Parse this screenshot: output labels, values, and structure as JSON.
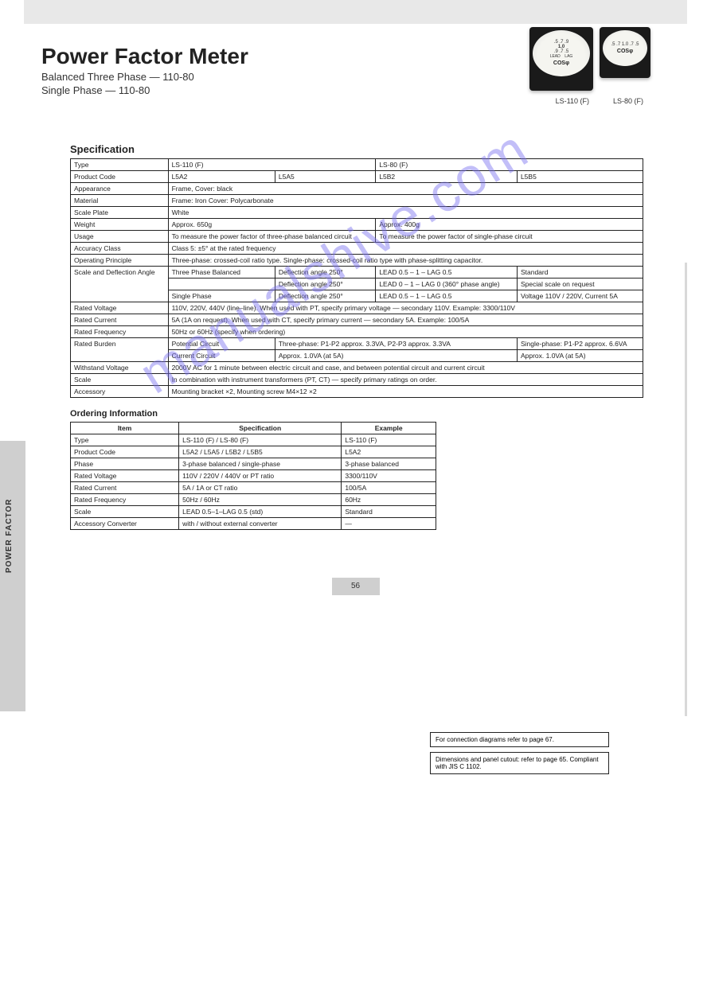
{
  "watermark_text": "manualshive.com",
  "header": {
    "title": "Power Factor Meter",
    "subtitle1": "Balanced Three Phase — 110-80",
    "subtitle2": "Single Phase — 110-80",
    "meter_label_big": "LS-110 (F)",
    "meter_label_small": "LS-80 (F)"
  },
  "spec_title": "Specification",
  "spec": {
    "rows": [
      {
        "k": "Type",
        "a": "LS-110 (F)",
        "b": "",
        "c": "LS-80 (F)",
        "d": ""
      },
      {
        "k": "Product Code",
        "a": "L5A2",
        "b": "L5A5",
        "c": "L5B2",
        "d": "L5B5"
      },
      {
        "k": "Appearance",
        "a": "Frame, Cover: black",
        "b": "",
        "c": "",
        "d": ""
      },
      {
        "k": "Material",
        "a": "Frame: Iron    Cover: Polycarbonate",
        "b": "",
        "c": "",
        "d": ""
      },
      {
        "k": "Scale Plate",
        "a": "White",
        "b": "",
        "c": "",
        "d": ""
      },
      {
        "k": "Weight",
        "a": "Approx. 650g",
        "b": "",
        "c": "Approx. 400g",
        "d": ""
      },
      {
        "k": "Usage",
        "a": "To measure the power factor of three-phase balanced circuit",
        "b": "",
        "c": "To measure the power factor of single-phase circuit",
        "d": ""
      },
      {
        "k": "Accuracy Class",
        "a": "Class 5: ±5° at the rated frequency",
        "b": "",
        "c": "",
        "d": ""
      },
      {
        "k": "Operating Principle",
        "a": "Three-phase: crossed-coil ratio type.    Single-phase: crossed-coil ratio type with phase-splitting capacitor.",
        "b": "",
        "c": "",
        "d": ""
      }
    ],
    "deflection_hdr": "Scale and Deflection Angle",
    "deflection": [
      {
        "k": "Three Phase Balanced",
        "desc": "Deflection angle 250°",
        "scale": "LEAD 0.5 – 1 – LAG 0.5",
        "note": "Standard"
      },
      {
        "k": "",
        "desc": "Deflection angle 250°",
        "scale": "LEAD 0 – 1 – LAG 0 (360° phase angle)",
        "note": "Special scale on request"
      },
      {
        "k": "Single Phase",
        "desc": "Deflection angle 250°",
        "scale": "LEAD 0.5 – 1 – LAG 0.5",
        "note": "Voltage 110V / 220V, Current 5A"
      }
    ],
    "rv_rows": [
      {
        "k": "Rated Voltage",
        "v": "110V, 220V, 440V (line–line). When used with PT, specify primary voltage — secondary 110V. Example: 3300/110V"
      },
      {
        "k": "Rated Current",
        "v": "5A (1A on request). When used with CT, specify primary current — secondary 5A. Example: 100/5A"
      },
      {
        "k": "Rated Frequency",
        "v": "50Hz or 60Hz (specify when ordering)"
      }
    ],
    "burden_hdr": "Rated Burden",
    "burden": [
      {
        "k": "Potential Circuit",
        "a": "Three-phase: P1-P2 approx. 3.3VA, P2-P3 approx. 3.3VA",
        "b": "Single-phase: P1-P2 approx. 6.6VA"
      },
      {
        "k": "Current Circuit",
        "a": "Approx. 1.0VA (at 5A)",
        "b": "Approx. 1.0VA (at 5A)"
      }
    ],
    "withstand": {
      "k": "Withstand Voltage",
      "v": "2000V AC for 1 minute between electric circuit and case, and between potential circuit and current circuit"
    },
    "accessory": {
      "k": "Accessory",
      "v": "Mounting bracket ×2, Mounting screw M4×12 ×2"
    },
    "scale_k": "Scale",
    "combo": "In combination with instrument transformers (PT, CT) — specify primary ratings on order."
  },
  "ordering_title": "Ordering Information",
  "ordering": {
    "cols": [
      "Item",
      "Specification",
      "Example"
    ],
    "rows": [
      [
        "Type",
        "LS-110 (F) / LS-80 (F)",
        "LS-110 (F)"
      ],
      [
        "Product Code",
        "L5A2 / L5A5 / L5B2 / L5B5",
        "L5A2"
      ],
      [
        "Phase",
        "3-phase balanced / single-phase",
        "3-phase balanced"
      ],
      [
        "Rated Voltage",
        "110V / 220V / 440V or PT ratio",
        "3300/110V"
      ],
      [
        "Rated Current",
        "5A / 1A or CT ratio",
        "100/5A"
      ],
      [
        "Rated Frequency",
        "50Hz / 60Hz",
        "60Hz"
      ],
      [
        "Scale",
        "LEAD 0.5–1–LAG 0.5 (std)",
        "Standard"
      ],
      [
        "Accessory Converter",
        "with / without external converter",
        "—"
      ]
    ]
  },
  "sidebox1": "For connection diagrams refer to page 67.",
  "sidebox2": "Dimensions and panel cutout: refer to page 65. Compliant with JIS C 1102.",
  "page_no": "56",
  "grey_label": "POWER FACTOR"
}
